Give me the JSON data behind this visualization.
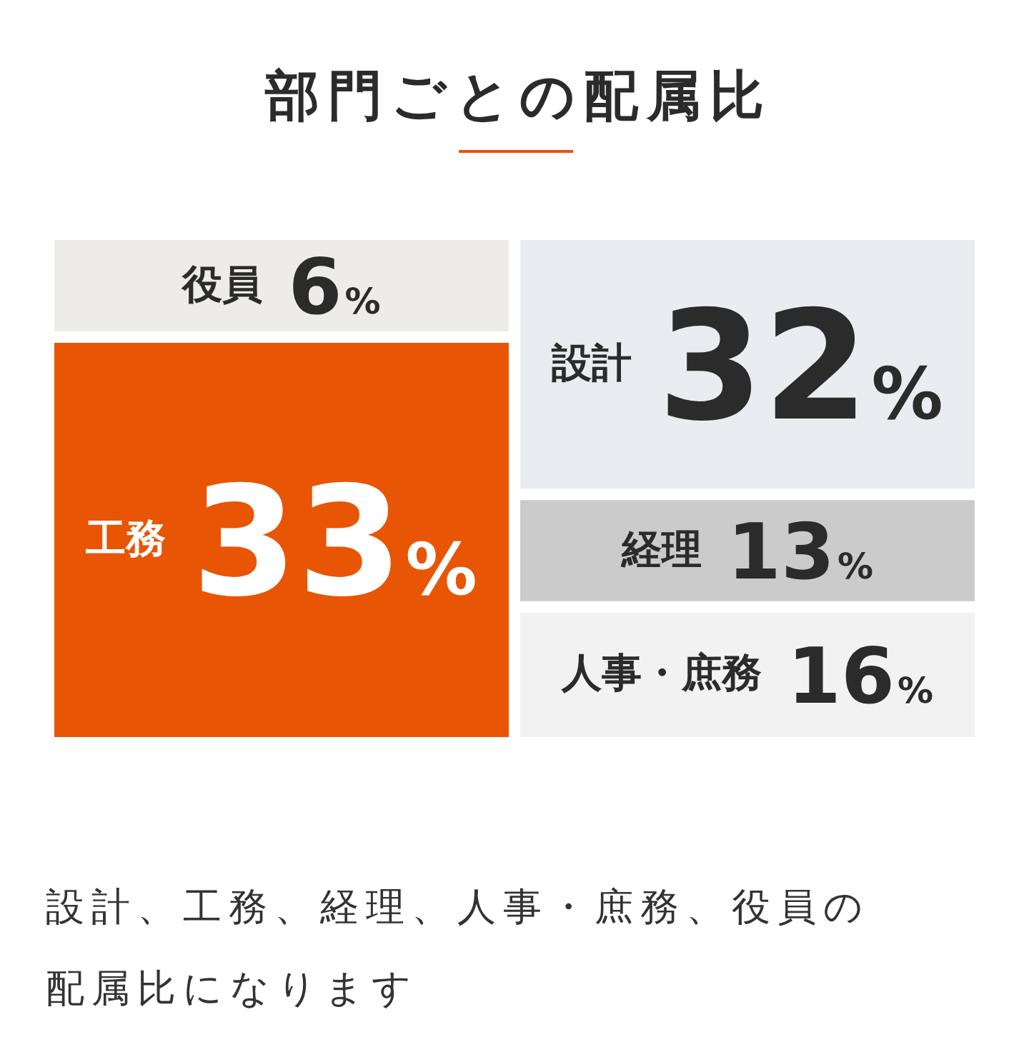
{
  "chart_data": {
    "type": "other",
    "title": "部門ごとの配属比",
    "categories": [
      "役員",
      "工務",
      "設計",
      "経理",
      "人事・庶務"
    ],
    "values": [
      6,
      33,
      32,
      13,
      16
    ],
    "value_labels": [
      "6%",
      "33%",
      "32%",
      "13%",
      "16%"
    ],
    "colors": [
      "#edece8",
      "#e85504",
      "#e9edf2",
      "#cbcbcb",
      "#f2f2f2"
    ],
    "annotations": [
      "設計、工務、経理、人事・庶務、役員の配属比になります"
    ]
  }
}
